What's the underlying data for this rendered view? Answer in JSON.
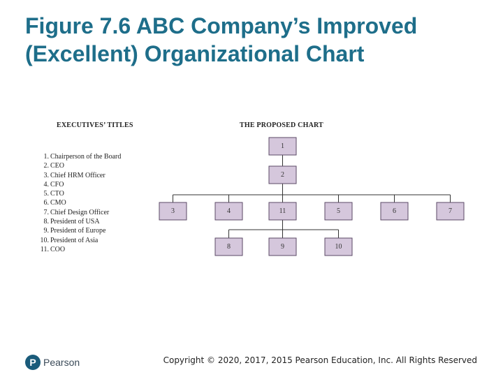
{
  "title": {
    "line1": "Figure 7.6 ABC Company’s Improved",
    "line2": "(Excellent) Organizational Chart"
  },
  "executives": {
    "heading": "EXECUTIVES’ TITLES",
    "items": [
      {
        "num": "1.",
        "label": "Chairperson of the Board"
      },
      {
        "num": "2.",
        "label": "CEO"
      },
      {
        "num": "3.",
        "label": "Chief HRM Officer"
      },
      {
        "num": "4.",
        "label": "CFO"
      },
      {
        "num": "5.",
        "label": "CTO"
      },
      {
        "num": "6.",
        "label": "CMO"
      },
      {
        "num": "7.",
        "label": "Chief Design Officer"
      },
      {
        "num": "8.",
        "label": "President of USA"
      },
      {
        "num": "9.",
        "label": "President of Europe"
      },
      {
        "num": "10.",
        "label": "President of Asia"
      },
      {
        "num": "11.",
        "label": "COO"
      }
    ]
  },
  "chart": {
    "heading": "THE PROPOSED CHART",
    "box_color": "#d5c7dc",
    "levels": [
      [
        "1"
      ],
      [
        "2"
      ],
      [
        "3",
        "4",
        "11",
        "5",
        "6",
        "7"
      ],
      [
        "8",
        "9",
        "10"
      ]
    ],
    "edges": [
      [
        "1",
        "2"
      ],
      [
        "2",
        "3"
      ],
      [
        "2",
        "4"
      ],
      [
        "2",
        "11"
      ],
      [
        "2",
        "5"
      ],
      [
        "2",
        "6"
      ],
      [
        "2",
        "7"
      ],
      [
        "11",
        "8"
      ],
      [
        "11",
        "9"
      ],
      [
        "11",
        "10"
      ]
    ]
  },
  "footer": {
    "logo_mark": "P",
    "logo_text": "Pearson",
    "copyright": "Copyright © 2020, 2017, 2015 Pearson Education, Inc. All Rights Reserved"
  }
}
